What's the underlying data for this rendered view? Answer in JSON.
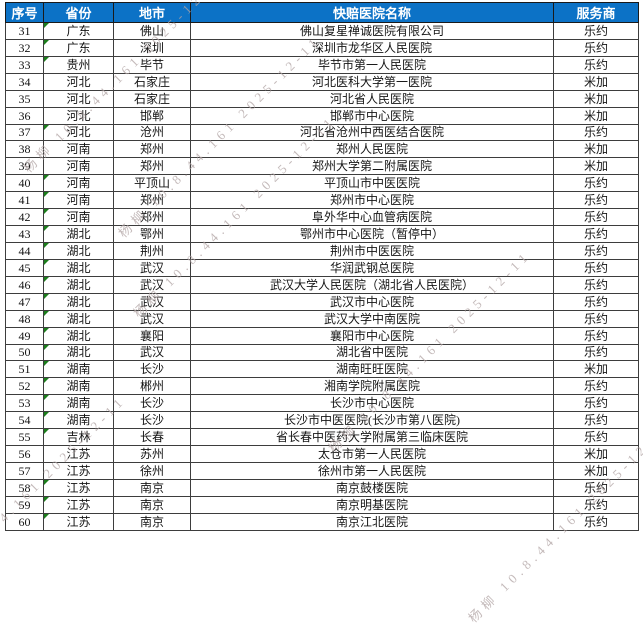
{
  "table": {
    "columns": [
      {
        "key": "no",
        "label": "序号"
      },
      {
        "key": "province",
        "label": "省份"
      },
      {
        "key": "city",
        "label": "地市"
      },
      {
        "key": "hospital",
        "label": "快赔医院名称"
      },
      {
        "key": "provider",
        "label": "服务商"
      }
    ],
    "rows": [
      {
        "no": "31",
        "province": "广东",
        "city": "佛山",
        "hospital": "佛山复星禅诚医院有限公司",
        "provider": "乐约",
        "marker": true
      },
      {
        "no": "32",
        "province": "广东",
        "city": "深圳",
        "hospital": "深圳市龙华区人民医院",
        "provider": "乐约",
        "marker": true
      },
      {
        "no": "33",
        "province": "贵州",
        "city": "毕节",
        "hospital": "毕节市第一人民医院",
        "provider": "乐约",
        "marker": true
      },
      {
        "no": "34",
        "province": "河北",
        "city": "石家庄",
        "hospital": "河北医科大学第一医院",
        "provider": "米加",
        "marker": false
      },
      {
        "no": "35",
        "province": "河北",
        "city": "石家庄",
        "hospital": "河北省人民医院",
        "provider": "米加",
        "marker": false
      },
      {
        "no": "36",
        "province": "河北",
        "city": "邯郸",
        "hospital": "邯郸市中心医院",
        "provider": "米加",
        "marker": false
      },
      {
        "no": "37",
        "province": "河北",
        "city": "沧州",
        "hospital": "河北省沧州中西医结合医院",
        "provider": "乐约",
        "marker": true
      },
      {
        "no": "38",
        "province": "河南",
        "city": "郑州",
        "hospital": "郑州人民医院",
        "provider": "米加",
        "marker": false
      },
      {
        "no": "39",
        "province": "河南",
        "city": "郑州",
        "hospital": "郑州大学第二附属医院",
        "provider": "米加",
        "marker": false
      },
      {
        "no": "40",
        "province": "河南",
        "city": "平顶山",
        "hospital": "平顶山市中医医院",
        "provider": "乐约",
        "marker": true
      },
      {
        "no": "41",
        "province": "河南",
        "city": "郑州",
        "hospital": "郑州市中心医院",
        "provider": "乐约",
        "marker": true
      },
      {
        "no": "42",
        "province": "河南",
        "city": "郑州",
        "hospital": "阜外华中心血管病医院",
        "provider": "乐约",
        "marker": true
      },
      {
        "no": "43",
        "province": "湖北",
        "city": "鄂州",
        "hospital": "鄂州市中心医院（暂停中）",
        "provider": "乐约",
        "marker": true
      },
      {
        "no": "44",
        "province": "湖北",
        "city": "荆州",
        "hospital": "荆州市中医医院",
        "provider": "乐约",
        "marker": true
      },
      {
        "no": "45",
        "province": "湖北",
        "city": "武汉",
        "hospital": "华润武钢总医院",
        "provider": "乐约",
        "marker": true
      },
      {
        "no": "46",
        "province": "湖北",
        "city": "武汉",
        "hospital": "武汉大学人民医院（湖北省人民医院）",
        "provider": "乐约",
        "marker": true
      },
      {
        "no": "47",
        "province": "湖北",
        "city": "武汉",
        "hospital": "武汉市中心医院",
        "provider": "乐约",
        "marker": true
      },
      {
        "no": "48",
        "province": "湖北",
        "city": "武汉",
        "hospital": "武汉大学中南医院",
        "provider": "乐约",
        "marker": true
      },
      {
        "no": "49",
        "province": "湖北",
        "city": "襄阳",
        "hospital": "襄阳市中心医院",
        "provider": "乐约",
        "marker": true
      },
      {
        "no": "50",
        "province": "湖北",
        "city": "武汉",
        "hospital": "湖北省中医院",
        "provider": "乐约",
        "marker": true
      },
      {
        "no": "51",
        "province": "湖南",
        "city": "长沙",
        "hospital": "湖南旺旺医院",
        "provider": "米加",
        "marker": true
      },
      {
        "no": "52",
        "province": "湖南",
        "city": "郴州",
        "hospital": "湘南学院附属医院",
        "provider": "乐约",
        "marker": true
      },
      {
        "no": "53",
        "province": "湖南",
        "city": "长沙",
        "hospital": "长沙市中心医院",
        "provider": "乐约",
        "marker": true
      },
      {
        "no": "54",
        "province": "湖南",
        "city": "长沙",
        "hospital": "长沙市中医医院(长沙市第八医院)",
        "provider": "乐约",
        "marker": true
      },
      {
        "no": "55",
        "province": "吉林",
        "city": "长春",
        "hospital": "省长春中医药大学附属第三临床医院",
        "provider": "乐约",
        "marker": true
      },
      {
        "no": "56",
        "province": "江苏",
        "city": "苏州",
        "hospital": "太仓市第一人民医院",
        "provider": "米加",
        "marker": false
      },
      {
        "no": "57",
        "province": "江苏",
        "city": "徐州",
        "hospital": "徐州市第一人民医院",
        "provider": "米加",
        "marker": false
      },
      {
        "no": "58",
        "province": "江苏",
        "city": "南京",
        "hospital": "南京鼓楼医院",
        "provider": "乐约",
        "marker": true
      },
      {
        "no": "59",
        "province": "江苏",
        "city": "南京",
        "hospital": "南京明基医院",
        "provider": "乐约",
        "marker": true
      },
      {
        "no": "60",
        "province": "江苏",
        "city": "南京",
        "hospital": "南京江北医院",
        "provider": "乐约",
        "marker": true
      }
    ]
  },
  "watermark": {
    "text": "杨柳 10.8.44.161 2025-12-11"
  },
  "colors": {
    "header_bg": "#0c72c6",
    "header_text": "#ffffff",
    "grid_line": "#3d3d3d",
    "marker_green": "#1c7e1c",
    "watermark_gray": "#b0a3a3"
  }
}
